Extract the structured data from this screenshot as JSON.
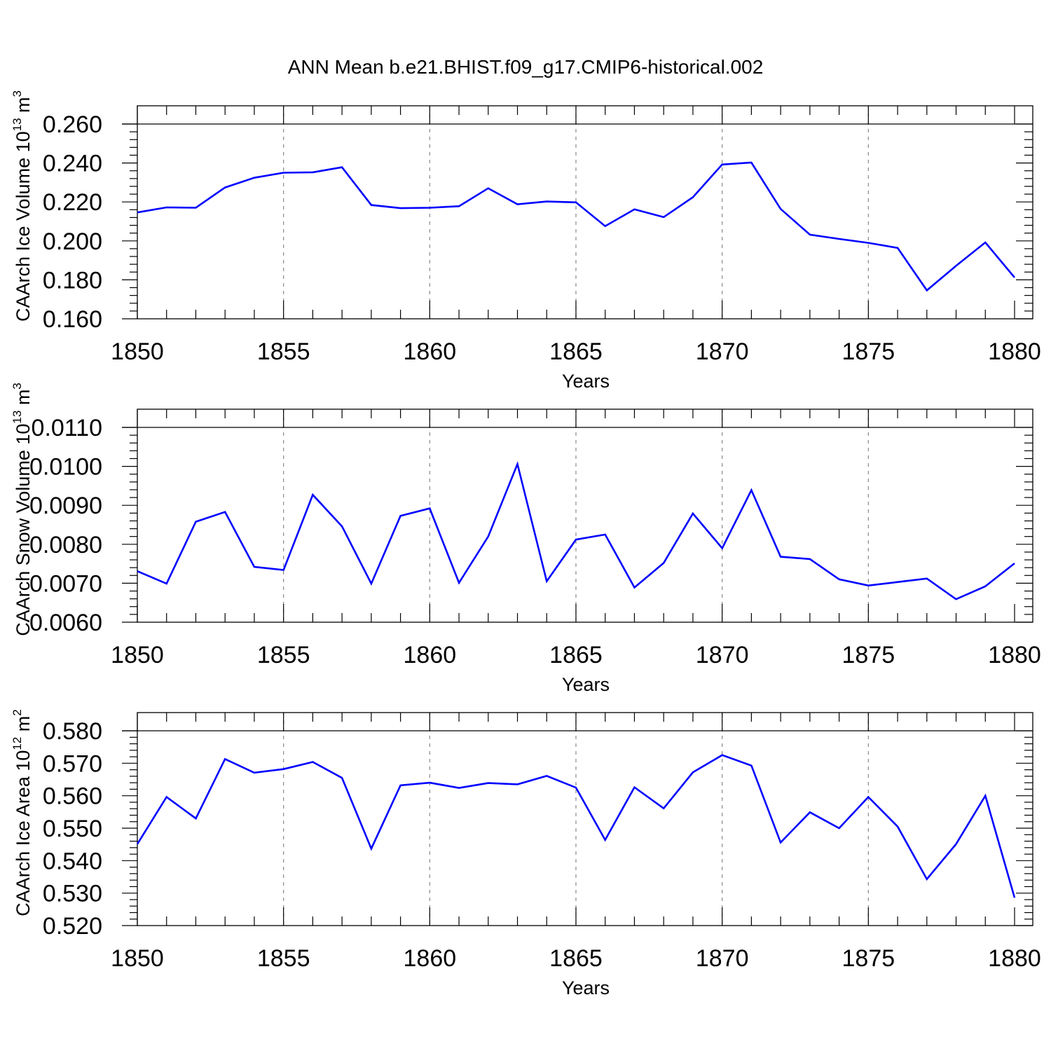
{
  "title": "ANN Mean b.e21.BHIST.f09_g17.CMIP6-historical.002",
  "chart_data": [
    {
      "type": "line",
      "ylabel_main": "CAArch Ice Volume 10",
      "ylabel_exp": "13",
      "ylabel_unit": " m",
      "ylabel_unit_exp": "3",
      "xlabel": "Years",
      "xlim": [
        1850,
        1880
      ],
      "ylim": [
        0.16,
        0.26
      ],
      "x_ticks": [
        "1850",
        "1855",
        "1860",
        "1865",
        "1870",
        "1875",
        "1880"
      ],
      "y_ticks": [
        "0.160",
        "0.180",
        "0.200",
        "0.220",
        "0.240",
        "0.260"
      ],
      "grid": "dashed vertical at major x ticks",
      "x": [
        1850,
        1851,
        1852,
        1853,
        1854,
        1855,
        1856,
        1857,
        1858,
        1859,
        1860,
        1861,
        1862,
        1863,
        1864,
        1865,
        1866,
        1867,
        1868,
        1869,
        1870,
        1871,
        1872,
        1873,
        1874,
        1875,
        1876,
        1877,
        1878,
        1879,
        1880
      ],
      "series": [
        {
          "color": "#0000ff",
          "values": [
            0.2146,
            0.2172,
            0.217,
            0.2274,
            0.2324,
            0.235,
            0.2352,
            0.2378,
            0.2184,
            0.2168,
            0.217,
            0.2178,
            0.227,
            0.2188,
            0.2202,
            0.2198,
            0.2076,
            0.2162,
            0.2122,
            0.2224,
            0.2392,
            0.2402,
            0.2164,
            0.2032,
            0.201,
            0.199,
            0.1964,
            0.1746,
            0.1872,
            0.1992,
            0.1812
          ]
        }
      ]
    },
    {
      "type": "line",
      "ylabel_main": "CAArch Snow Volume 10",
      "ylabel_exp": "13",
      "ylabel_unit": " m",
      "ylabel_unit_exp": "3",
      "xlabel": "Years",
      "xlim": [
        1850,
        1880
      ],
      "ylim": [
        0.006,
        0.011
      ],
      "x_ticks": [
        "1850",
        "1855",
        "1860",
        "1865",
        "1870",
        "1875",
        "1880"
      ],
      "y_ticks": [
        "0.0060",
        "0.0070",
        "0.0080",
        "0.0090",
        "0.0100",
        "0.0110"
      ],
      "grid": "dashed vertical at major x ticks",
      "x": [
        1850,
        1851,
        1852,
        1853,
        1854,
        1855,
        1856,
        1857,
        1858,
        1859,
        1860,
        1861,
        1862,
        1863,
        1864,
        1865,
        1866,
        1867,
        1868,
        1869,
        1870,
        1871,
        1872,
        1873,
        1874,
        1875,
        1876,
        1877,
        1878,
        1879,
        1880
      ],
      "series": [
        {
          "color": "#0000ff",
          "values": [
            0.00731,
            0.00699,
            0.00858,
            0.00883,
            0.00742,
            0.00734,
            0.00927,
            0.00846,
            0.00699,
            0.00873,
            0.00892,
            0.00701,
            0.0082,
            0.01006,
            0.00705,
            0.00812,
            0.00825,
            0.00689,
            0.00752,
            0.00879,
            0.0079,
            0.00939,
            0.00768,
            0.00762,
            0.0071,
            0.00694,
            0.00703,
            0.00712,
            0.00659,
            0.00692,
            0.00751
          ]
        }
      ]
    },
    {
      "type": "line",
      "ylabel_main": "CAArch Ice Area 10",
      "ylabel_exp": "12",
      "ylabel_unit": " m",
      "ylabel_unit_exp": "2",
      "xlabel": "Years",
      "xlim": [
        1850,
        1880
      ],
      "ylim": [
        0.52,
        0.58
      ],
      "x_ticks": [
        "1850",
        "1855",
        "1860",
        "1865",
        "1870",
        "1875",
        "1880"
      ],
      "y_ticks": [
        "0.520",
        "0.530",
        "0.540",
        "0.550",
        "0.560",
        "0.570",
        "0.580"
      ],
      "grid": "dashed vertical at major x ticks",
      "x": [
        1850,
        1851,
        1852,
        1853,
        1854,
        1855,
        1856,
        1857,
        1858,
        1859,
        1860,
        1861,
        1862,
        1863,
        1864,
        1865,
        1866,
        1867,
        1868,
        1869,
        1870,
        1871,
        1872,
        1873,
        1874,
        1875,
        1876,
        1877,
        1878,
        1879,
        1880
      ],
      "series": [
        {
          "color": "#0000ff",
          "values": [
            0.5451,
            0.5596,
            0.553,
            0.5713,
            0.5671,
            0.5682,
            0.5704,
            0.5655,
            0.5437,
            0.5632,
            0.564,
            0.5624,
            0.5639,
            0.5635,
            0.5661,
            0.5625,
            0.5464,
            0.5626,
            0.5561,
            0.5672,
            0.5725,
            0.5693,
            0.5456,
            0.5549,
            0.55,
            0.5596,
            0.5505,
            0.5343,
            0.5451,
            0.56,
            0.5286
          ]
        }
      ]
    }
  ]
}
